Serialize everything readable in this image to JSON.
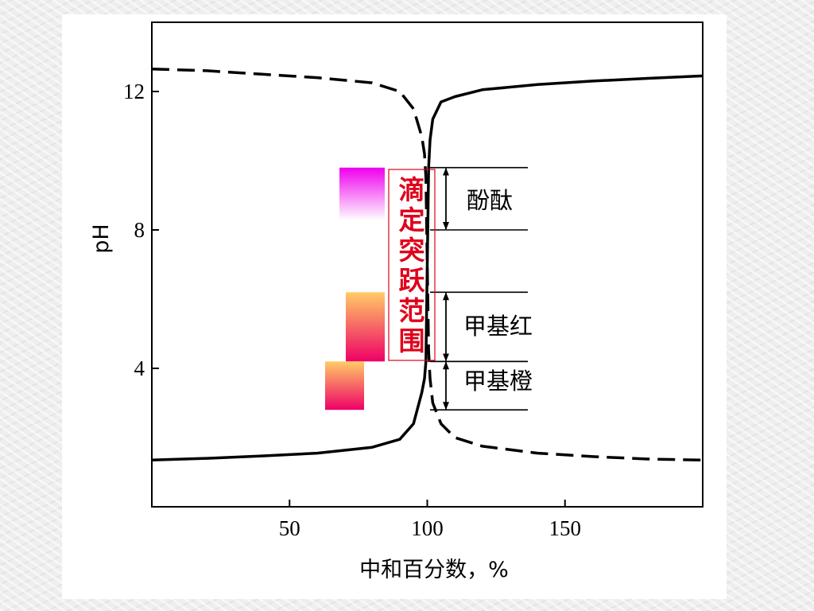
{
  "chart_data": {
    "type": "line",
    "title": "",
    "xlabel": "中和百分数，%",
    "ylabel": "pH",
    "xlim": [
      0,
      200
    ],
    "ylim": [
      0,
      14
    ],
    "xticks": [
      50,
      100,
      150
    ],
    "yticks": [
      4,
      8,
      12
    ],
    "grid": false,
    "series": [
      {
        "style": "solid",
        "x": [
          0,
          20,
          40,
          60,
          80,
          90,
          95,
          98,
          99,
          99.5,
          100,
          100.5,
          101,
          102,
          105,
          110,
          120,
          140,
          160,
          180,
          200
        ],
        "y": [
          1.35,
          1.4,
          1.47,
          1.55,
          1.72,
          1.95,
          2.4,
          3.3,
          3.7,
          4.2,
          7.0,
          9.8,
          10.6,
          11.2,
          11.7,
          11.85,
          12.05,
          12.2,
          12.3,
          12.38,
          12.45
        ]
      },
      {
        "style": "dashed",
        "x": [
          0,
          20,
          40,
          60,
          80,
          90,
          95,
          98,
          99,
          99.5,
          100,
          100.5,
          101,
          102,
          105,
          110,
          120,
          140,
          160,
          180,
          200
        ],
        "y": [
          12.65,
          12.6,
          12.5,
          12.4,
          12.25,
          12.0,
          11.5,
          10.7,
          10.2,
          9.5,
          7.0,
          4.5,
          3.7,
          3.0,
          2.4,
          2.0,
          1.75,
          1.55,
          1.45,
          1.38,
          1.35
        ]
      }
    ],
    "annotations": {
      "jump_range": [
        "滴",
        "定",
        "突",
        "跃",
        "范",
        "围"
      ],
      "jump_range_color": "#e0001b",
      "indicators": [
        {
          "label": "酚酞",
          "range": [
            8.0,
            9.8
          ],
          "gradient": [
            "#ee00ee",
            "#ffffff"
          ]
        },
        {
          "label": "甲基红",
          "range": [
            4.2,
            6.2
          ],
          "gradient": [
            "#ffcc66",
            "#ee0066"
          ]
        },
        {
          "label": "甲基橙",
          "range": [
            2.8,
            4.2
          ],
          "gradient": [
            "#ffcc66",
            "#ee0066"
          ]
        }
      ]
    }
  }
}
